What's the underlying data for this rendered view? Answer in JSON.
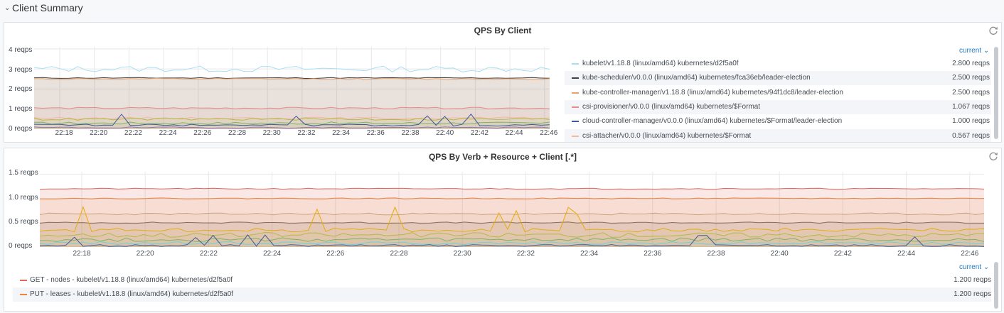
{
  "row": {
    "title": "Client Summary",
    "chevron": "⌄"
  },
  "panel1": {
    "title": "QPS By Client",
    "y_ticks": [
      "4 reqps",
      "3 reqps",
      "2 reqps",
      "1 reqps",
      "0 reqps"
    ],
    "x_ticks": [
      "22:18",
      "22:20",
      "22:22",
      "22:24",
      "22:26",
      "22:28",
      "22:30",
      "22:32",
      "22:34",
      "22:36",
      "22:38",
      "22:40",
      "22:42",
      "22:44",
      "22:46"
    ],
    "legend_sort": "current ⌄",
    "legend": [
      {
        "label": "kubelet/v1.18.8 (linux/amd64) kubernetes/d2f5a0f",
        "value": "2.800 reqps",
        "color": "#a8dff0"
      },
      {
        "label": "kube-scheduler/v0.0.0 (linux/amd64) kubernetes/fca36eb/leader-election",
        "value": "2.500 reqps",
        "color": "#3f3f46"
      },
      {
        "label": "kube-controller-manager/v1.18.8 (linux/amd64) kubernetes/94f1dc8/leader-election",
        "value": "2.500 reqps",
        "color": "#e8a26a"
      },
      {
        "label": "csi-provisioner/v0.0.0 (linux/amd64) kubernetes/$Format",
        "value": "1.067 reqps",
        "color": "#e88b8b"
      },
      {
        "label": "cloud-controller-manager/v0.0.0 (linux/amd64) kubernetes/$Format/leader-election",
        "value": "1.000 reqps",
        "color": "#3c5a9a"
      },
      {
        "label": "csi-attacher/v0.0.0 (linux/amd64) kubernetes/$Format",
        "value": "0.567 reqps",
        "color": "#f4b9a1"
      }
    ]
  },
  "panel2": {
    "title": "QPS By Verb + Resource + Client [.*]",
    "y_ticks": [
      "1.5 reqps",
      "1.0 reqps",
      "0.5 reqps",
      "0 reqps"
    ],
    "x_ticks": [
      "22:18",
      "22:20",
      "22:22",
      "22:24",
      "22:26",
      "22:28",
      "22:30",
      "22:32",
      "22:34",
      "22:36",
      "22:38",
      "22:40",
      "22:42",
      "22:44",
      "22:46"
    ],
    "legend_sort": "current ⌄",
    "legend": [
      {
        "label": "GET - nodes - kubelet/v1.18.8 (linux/amd64) kubernetes/d2f5a0f",
        "value": "1.200 reqps",
        "color": "#e0655a"
      },
      {
        "label": "PUT - leases - kubelet/v1.18.8 (linux/amd64) kubernetes/d2f5a0f",
        "value": "1.200 reqps",
        "color": "#ef843c"
      }
    ]
  },
  "colors": {
    "accent": "#1f78c1",
    "grid": "#e6e8eb",
    "background": "#f7f8fa"
  }
}
